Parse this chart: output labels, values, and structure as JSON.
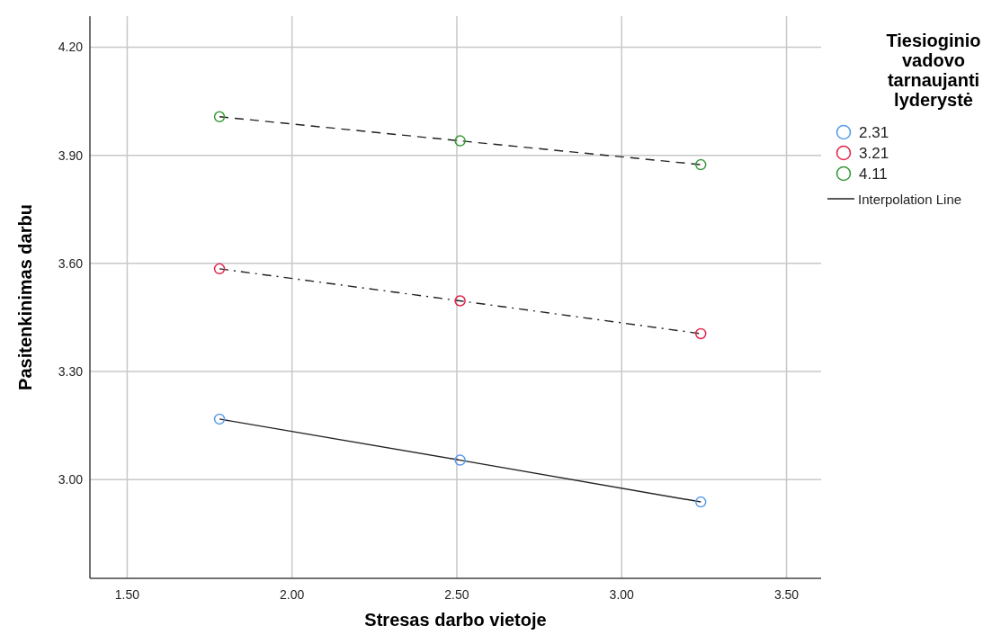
{
  "chart_data": {
    "type": "line",
    "xlabel": "Stresas darbo vietoje",
    "ylabel": "Pasitenkinimas darbu",
    "legend_title": "Tiesioginio vadovo tarnaujanti lyderystė",
    "x": [
      1.78,
      2.51,
      3.24
    ],
    "series": [
      {
        "name": "2.31",
        "color": "#5b9bea",
        "values": [
          3.168,
          3.054,
          2.938
        ],
        "line_style": "solid"
      },
      {
        "name": "3.21",
        "color": "#e3284d",
        "values": [
          3.585,
          3.496,
          3.405
        ],
        "line_style": "dashdot"
      },
      {
        "name": "4.11",
        "color": "#3a9a3a",
        "values": [
          4.007,
          3.94,
          3.874
        ],
        "line_style": "dashed"
      }
    ],
    "xlim": [
      1.387,
      3.605
    ],
    "xticks": [
      {
        "value": 1.5,
        "label": "1.50"
      },
      {
        "value": 2,
        "label": "2.00"
      },
      {
        "value": 2.5,
        "label": "2.50"
      },
      {
        "value": 3,
        "label": "3.00"
      },
      {
        "value": 3.5,
        "label": "3.50"
      }
    ],
    "ylim": [
      2.726,
      4.286
    ],
    "yticks": [
      {
        "value": 3,
        "label": "3.00"
      },
      {
        "value": 3.3,
        "label": "3.30"
      },
      {
        "value": 3.6,
        "label": "3.60"
      },
      {
        "value": 3.9,
        "label": "3.90"
      },
      {
        "value": 4.2,
        "label": "4.20"
      }
    ],
    "grid": true,
    "legend": "top right",
    "marker": "circle",
    "annotations": [
      "Interpolation Line"
    ]
  }
}
